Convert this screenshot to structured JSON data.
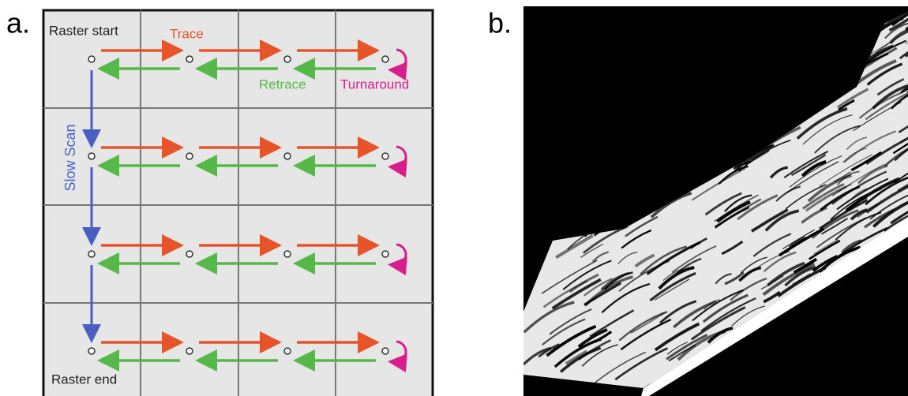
{
  "panel_a": {
    "label": "a.",
    "raster_start": "Raster start",
    "trace": "Trace",
    "retrace": "Retrace",
    "turnaround": "Turnaround",
    "slow_scan": "Slow Scan",
    "raster_end": "Raster end"
  },
  "panel_b": {
    "label": "b."
  }
}
